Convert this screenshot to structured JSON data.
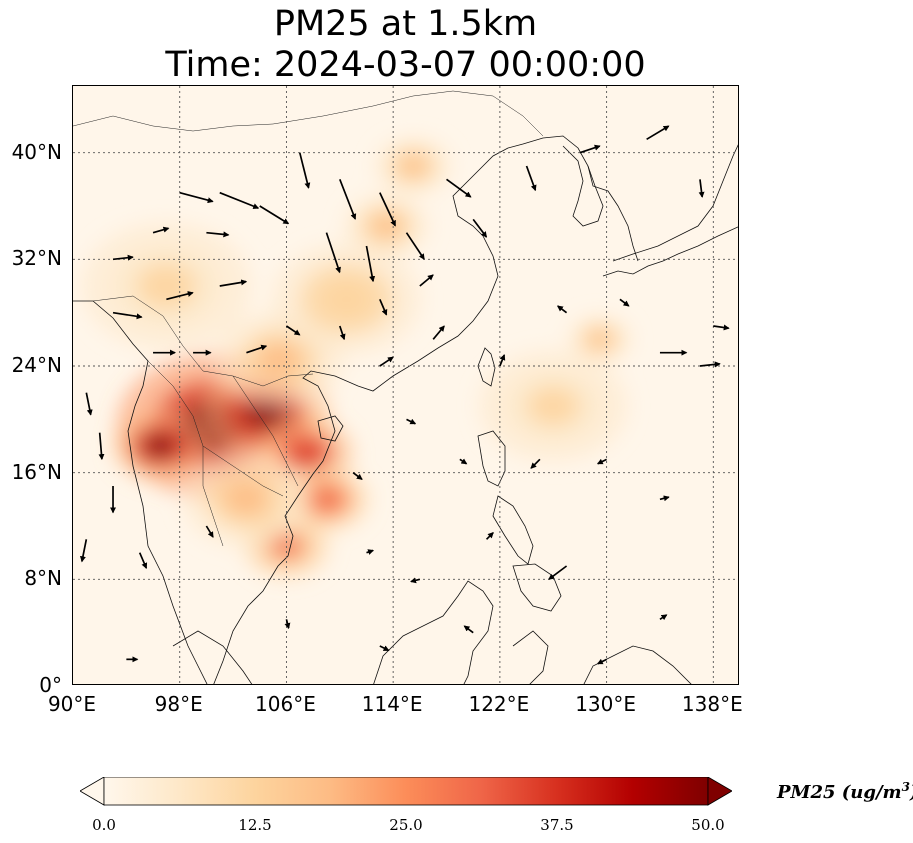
{
  "title": {
    "line1": "PM25 at 1.5km",
    "line2": "Time: 2024-03-07 00:00:00"
  },
  "map": {
    "lon_range": [
      90,
      140
    ],
    "lat_range": [
      0,
      45
    ],
    "lat_ticks": [
      {
        "value": 0,
        "label": "0°"
      },
      {
        "value": 8,
        "label": "8°N"
      },
      {
        "value": 16,
        "label": "16°N"
      },
      {
        "value": 24,
        "label": "24°N"
      },
      {
        "value": 32,
        "label": "32°N"
      },
      {
        "value": 40,
        "label": "40°N"
      }
    ],
    "lon_ticks": [
      {
        "value": 90,
        "label": "90°E"
      },
      {
        "value": 98,
        "label": "98°E"
      },
      {
        "value": 106,
        "label": "106°E"
      },
      {
        "value": 114,
        "label": "114°E"
      },
      {
        "value": 122,
        "label": "122°E"
      },
      {
        "value": 130,
        "label": "130°E"
      },
      {
        "value": 138,
        "label": "138°E"
      }
    ],
    "gridlines": "dotted",
    "pollution_hotspots": [
      {
        "lon": 100.5,
        "lat": 19.5,
        "value": 50,
        "spread": 4.5
      },
      {
        "lon": 96.5,
        "lat": 18.0,
        "value": 46,
        "spread": 2.2
      },
      {
        "lon": 104.5,
        "lat": 20.5,
        "value": 48,
        "spread": 3.0
      },
      {
        "lon": 107.5,
        "lat": 17.5,
        "value": 38,
        "spread": 2.2
      },
      {
        "lon": 109.0,
        "lat": 14.0,
        "value": 30,
        "spread": 2.0
      },
      {
        "lon": 106.0,
        "lat": 10.5,
        "value": 27,
        "spread": 2.0
      },
      {
        "lon": 103.0,
        "lat": 14.0,
        "value": 20,
        "spread": 3.0
      },
      {
        "lon": 105.5,
        "lat": 24.5,
        "value": 20,
        "spread": 3.0
      },
      {
        "lon": 110.5,
        "lat": 29.0,
        "value": 14,
        "spread": 3.5
      },
      {
        "lon": 113.5,
        "lat": 34.5,
        "value": 18,
        "spread": 2.0
      },
      {
        "lon": 115.5,
        "lat": 39.0,
        "value": 16,
        "spread": 1.8
      },
      {
        "lon": 97.0,
        "lat": 30.0,
        "value": 12,
        "spread": 4.0
      },
      {
        "lon": 129.5,
        "lat": 26.0,
        "value": 18,
        "spread": 1.5
      },
      {
        "lon": 126.0,
        "lat": 21.0,
        "value": 12,
        "spread": 3.5
      }
    ],
    "wind_vectors": [
      {
        "lon": 98,
        "lat": 37,
        "u": 3.0,
        "v": -0.8
      },
      {
        "lon": 101,
        "lat": 37,
        "u": 3.5,
        "v": -1.4
      },
      {
        "lon": 104,
        "lat": 36,
        "u": 2.6,
        "v": -1.6
      },
      {
        "lon": 107,
        "lat": 40,
        "u": 0.8,
        "v": -3.2
      },
      {
        "lon": 110,
        "lat": 38,
        "u": 1.4,
        "v": -3.6
      },
      {
        "lon": 113,
        "lat": 37,
        "u": 1.4,
        "v": -3.0
      },
      {
        "lon": 109,
        "lat": 34,
        "u": 1.2,
        "v": -3.6
      },
      {
        "lon": 112,
        "lat": 33,
        "u": 0.6,
        "v": -3.2
      },
      {
        "lon": 115,
        "lat": 34,
        "u": 1.6,
        "v": -2.4
      },
      {
        "lon": 118,
        "lat": 38,
        "u": 2.2,
        "v": -1.6
      },
      {
        "lon": 120,
        "lat": 35,
        "u": 1.2,
        "v": -1.6
      },
      {
        "lon": 124,
        "lat": 39,
        "u": 0.8,
        "v": -2.2
      },
      {
        "lon": 128,
        "lat": 40,
        "u": 1.8,
        "v": 0.6
      },
      {
        "lon": 133,
        "lat": 41,
        "u": 2.0,
        "v": 1.2
      },
      {
        "lon": 137,
        "lat": 38,
        "u": 0.2,
        "v": -1.6
      },
      {
        "lon": 96,
        "lat": 34,
        "u": 1.4,
        "v": 0.4
      },
      {
        "lon": 100,
        "lat": 34,
        "u": 2.0,
        "v": -0.2
      },
      {
        "lon": 93,
        "lat": 32,
        "u": 1.8,
        "v": 0.2
      },
      {
        "lon": 97,
        "lat": 29,
        "u": 2.4,
        "v": 0.6
      },
      {
        "lon": 101,
        "lat": 30,
        "u": 2.4,
        "v": 0.4
      },
      {
        "lon": 93,
        "lat": 28,
        "u": 2.6,
        "v": -0.4
      },
      {
        "lon": 96,
        "lat": 25,
        "u": 2.0,
        "v": 0.0
      },
      {
        "lon": 99,
        "lat": 25,
        "u": 1.6,
        "v": 0.0
      },
      {
        "lon": 103,
        "lat": 25,
        "u": 1.8,
        "v": 0.6
      },
      {
        "lon": 106,
        "lat": 27,
        "u": 1.2,
        "v": -0.8
      },
      {
        "lon": 110,
        "lat": 27,
        "u": 0.4,
        "v": -1.2
      },
      {
        "lon": 113,
        "lat": 29,
        "u": 0.6,
        "v": -1.4
      },
      {
        "lon": 116,
        "lat": 30,
        "u": 1.2,
        "v": 1.0
      },
      {
        "lon": 113,
        "lat": 24,
        "u": 1.2,
        "v": 0.8
      },
      {
        "lon": 117,
        "lat": 26,
        "u": 1.0,
        "v": 1.2
      },
      {
        "lon": 122,
        "lat": 24,
        "u": 0.4,
        "v": 1.0
      },
      {
        "lon": 127,
        "lat": 28,
        "u": -0.8,
        "v": 0.6
      },
      {
        "lon": 131,
        "lat": 29,
        "u": 0.8,
        "v": -0.6
      },
      {
        "lon": 134,
        "lat": 25,
        "u": 2.4,
        "v": 0.0
      },
      {
        "lon": 137,
        "lat": 24,
        "u": 1.8,
        "v": 0.2
      },
      {
        "lon": 138,
        "lat": 27,
        "u": 1.4,
        "v": -0.2
      },
      {
        "lon": 91,
        "lat": 22,
        "u": 0.4,
        "v": -2.0
      },
      {
        "lon": 92,
        "lat": 19,
        "u": 0.2,
        "v": -2.4
      },
      {
        "lon": 93,
        "lat": 15,
        "u": 0.0,
        "v": -2.4
      },
      {
        "lon": 91,
        "lat": 11,
        "u": -0.4,
        "v": -2.0
      },
      {
        "lon": 95,
        "lat": 10,
        "u": 0.6,
        "v": -1.4
      },
      {
        "lon": 100,
        "lat": 12,
        "u": 0.6,
        "v": -1.0
      },
      {
        "lon": 111,
        "lat": 16,
        "u": 0.8,
        "v": -0.6
      },
      {
        "lon": 115,
        "lat": 20,
        "u": 0.8,
        "v": -0.4
      },
      {
        "lon": 119,
        "lat": 17,
        "u": 0.6,
        "v": -0.4
      },
      {
        "lon": 125,
        "lat": 17,
        "u": -0.8,
        "v": -0.8
      },
      {
        "lon": 130,
        "lat": 17,
        "u": -0.8,
        "v": -0.4
      },
      {
        "lon": 134,
        "lat": 14,
        "u": 0.8,
        "v": 0.2
      },
      {
        "lon": 121,
        "lat": 11,
        "u": 0.6,
        "v": 0.6
      },
      {
        "lon": 127,
        "lat": 9,
        "u": -1.6,
        "v": -1.2
      },
      {
        "lon": 116,
        "lat": 8,
        "u": -0.8,
        "v": -0.2
      },
      {
        "lon": 112,
        "lat": 10,
        "u": 0.6,
        "v": 0.2
      },
      {
        "lon": 106,
        "lat": 5,
        "u": 0.2,
        "v": -0.8
      },
      {
        "lon": 113,
        "lat": 3,
        "u": 0.8,
        "v": -0.4
      },
      {
        "lon": 120,
        "lat": 4,
        "u": -0.8,
        "v": 0.6
      },
      {
        "lon": 130,
        "lat": 2,
        "u": -0.8,
        "v": -0.4
      },
      {
        "lon": 94,
        "lat": 2,
        "u": 1.0,
        "v": 0.0
      },
      {
        "lon": 134,
        "lat": 5,
        "u": 0.6,
        "v": 0.4
      }
    ]
  },
  "colorbar": {
    "label": "PM25 (ug/m",
    "label_exponent": "3",
    "label_close": ")",
    "min": 0,
    "max": 50,
    "extend": "both",
    "colormap": "OrRd",
    "colors": [
      "#fff7ec",
      "#fee8c8",
      "#fdd49e",
      "#fdbb84",
      "#fc8d59",
      "#ef6548",
      "#d7301f",
      "#b30000",
      "#7f0000"
    ],
    "ticks": [
      "0.0",
      "12.5",
      "25.0",
      "37.5",
      "50.0"
    ]
  }
}
